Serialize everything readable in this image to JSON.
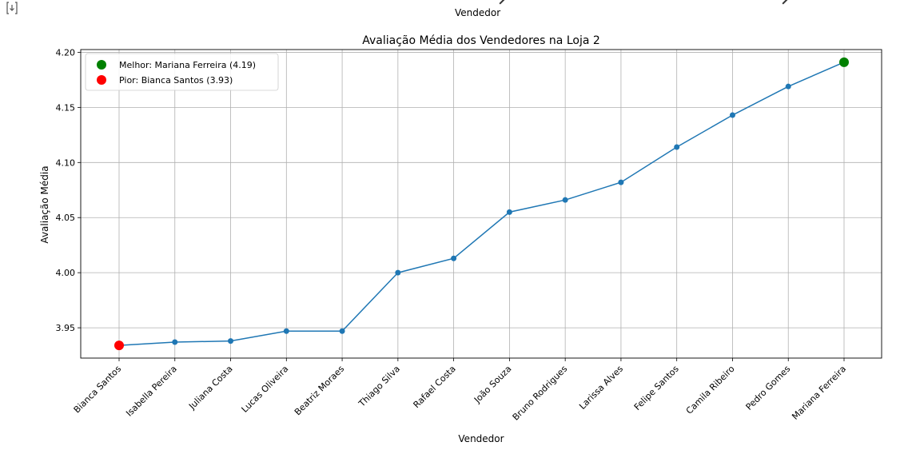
{
  "output": {
    "icon": "output-redirect-icon",
    "prev_xlabel": "Vendedor"
  },
  "chart_data": {
    "type": "line",
    "title": "Avaliação Média dos Vendedores na Loja 2",
    "xlabel": "Vendedor",
    "ylabel": "Avaliação Média",
    "categories": [
      "Bianca Santos",
      "Isabella Pereira",
      "Juliana Costa",
      "Lucas Oliveira",
      "Beatriz Moraes",
      "Thiago Silva",
      "Rafael Costa",
      "João Souza",
      "Bruno Rodrigues",
      "Larissa Alves",
      "Felipe Santos",
      "Camila Ribeiro",
      "Pedro Gomes",
      "Mariana Ferreira"
    ],
    "series": [
      {
        "values": [
          3.934,
          3.937,
          3.938,
          3.947,
          3.947,
          4.0,
          4.013,
          4.055,
          4.066,
          4.082,
          4.114,
          4.143,
          4.169,
          4.191
        ],
        "color": "#1f77b4"
      }
    ],
    "yticks": [
      "3.95",
      "4.00",
      "4.05",
      "4.10",
      "4.15",
      "4.20"
    ],
    "ylim": [
      3.9225,
      4.2025
    ],
    "grid": true,
    "legend_position": "top-left",
    "highlights": [
      {
        "label": "Melhor: Mariana Ferreira (4.19)",
        "category": "Mariana Ferreira",
        "value": 4.191,
        "color": "#008000"
      },
      {
        "label": "Pior: Bianca Santos (3.93)",
        "category": "Bianca Santos",
        "value": 3.934,
        "color": "#ff0000"
      }
    ]
  }
}
